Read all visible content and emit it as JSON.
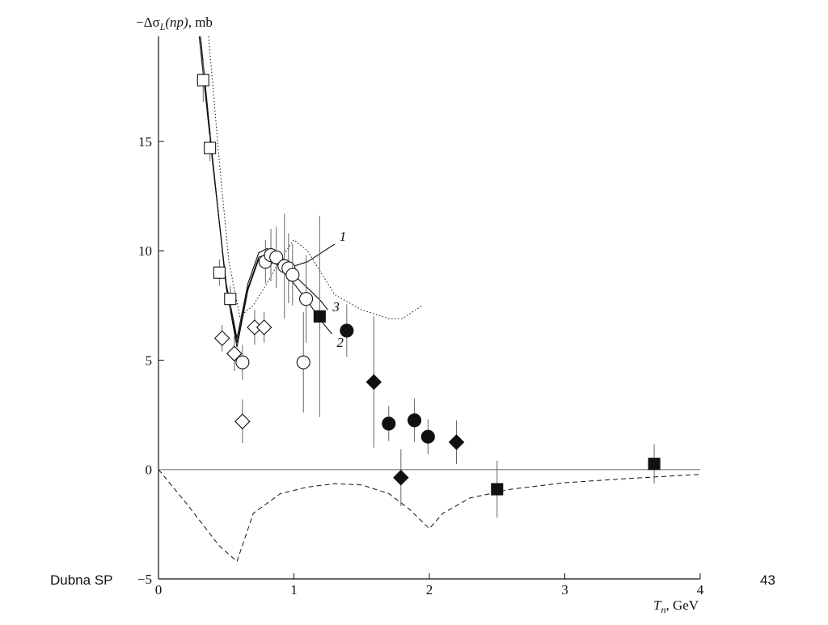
{
  "chart_data": {
    "type": "scatter",
    "y_label": [
      "−Δσ",
      "L",
      "(np)",
      ", mb"
    ],
    "x_label": [
      "T",
      "n",
      ", GeV"
    ],
    "xlim": [
      0,
      4
    ],
    "ylim": [
      -5,
      19.8
    ],
    "xticks": [
      0,
      1,
      2,
      3,
      4
    ],
    "yticks": [
      {
        "value": -5,
        "label": "−5"
      },
      0,
      5,
      10,
      15
    ],
    "color": "#111111",
    "series": [
      {
        "marker": "square",
        "filled": false,
        "x": [
          0.33,
          0.38,
          0.45,
          0.53
        ],
        "values": [
          17.8,
          14.7,
          9.0,
          7.8
        ],
        "errors": [
          1.0,
          0.6,
          0.6,
          0.6
        ]
      },
      {
        "marker": "diamond",
        "filled": false,
        "x": [
          0.47,
          0.56,
          0.62,
          0.71,
          0.78
        ],
        "values": [
          6.0,
          5.3,
          2.2,
          6.5,
          6.5
        ],
        "errors": [
          0.6,
          0.8,
          1.0,
          0.8,
          0.7
        ]
      },
      {
        "marker": "circle",
        "filled": false,
        "x": [
          0.62,
          0.79,
          0.83,
          0.87,
          0.93,
          0.96,
          0.99,
          1.09,
          1.07
        ],
        "values": [
          4.9,
          9.5,
          9.8,
          9.7,
          9.3,
          9.2,
          8.9,
          7.8,
          4.9
        ],
        "errors": [
          0.8,
          1.0,
          1.2,
          1.4,
          2.4,
          1.6,
          1.4,
          2.0,
          2.3
        ]
      },
      {
        "marker": "square",
        "filled": true,
        "x": [
          1.19,
          2.5,
          3.66
        ],
        "values": [
          7.0,
          -0.9,
          0.26
        ],
        "errors": [
          4.6,
          1.3,
          0.9
        ]
      },
      {
        "marker": "circle",
        "filled": true,
        "x": [
          1.39,
          1.7,
          1.89,
          1.99
        ],
        "values": [
          6.35,
          2.1,
          2.25,
          1.5
        ],
        "errors": [
          1.2,
          0.8,
          1.0,
          0.8
        ]
      },
      {
        "marker": "diamond",
        "filled": true,
        "x": [
          1.59,
          1.79,
          2.2
        ],
        "values": [
          4.0,
          -0.37,
          1.25
        ],
        "errors": [
          3.0,
          1.3,
          1.0
        ]
      },
      {
        "name": "1",
        "line": "solid",
        "x": [
          0.3,
          0.4,
          0.5,
          0.58,
          0.66,
          0.74,
          0.8,
          0.9,
          1.0,
          1.1,
          1.2,
          1.3
        ],
        "values": [
          19.8,
          14.0,
          8.5,
          6.0,
          8.5,
          9.9,
          10.1,
          9.7,
          9.3,
          9.5,
          9.9,
          10.3
        ]
      },
      {
        "name": "2",
        "line": "solid",
        "x": [
          0.31,
          0.4,
          0.5,
          0.58,
          0.66,
          0.74,
          0.82,
          0.9,
          1.0,
          1.1,
          1.2,
          1.28
        ],
        "values": [
          19.8,
          14.2,
          8.3,
          5.6,
          8.2,
          9.6,
          9.8,
          9.2,
          8.5,
          7.7,
          6.8,
          6.2
        ]
      },
      {
        "name": "3",
        "line": "solid",
        "x": [
          0.31,
          0.4,
          0.5,
          0.58,
          0.66,
          0.74,
          0.82,
          0.9,
          1.0,
          1.1,
          1.2,
          1.25
        ],
        "values": [
          19.8,
          14.1,
          8.4,
          5.8,
          8.3,
          9.7,
          9.9,
          9.5,
          8.9,
          8.3,
          7.7,
          7.3
        ]
      },
      {
        "line": "dotted",
        "x": [
          0.37,
          0.45,
          0.52,
          0.6,
          0.7,
          0.8,
          0.9,
          1.0,
          1.1,
          1.2,
          1.3,
          1.5,
          1.7,
          1.8,
          1.95
        ],
        "values": [
          19.8,
          14.0,
          9.5,
          7.0,
          7.5,
          8.5,
          9.6,
          10.5,
          10.0,
          9.0,
          8.0,
          7.3,
          6.9,
          6.9,
          7.5
        ]
      },
      {
        "line": "dashed",
        "x": [
          0,
          0.2,
          0.45,
          0.58,
          0.7,
          0.9,
          1.1,
          1.3,
          1.5,
          1.7,
          1.85,
          2.0,
          2.1,
          2.3,
          2.6,
          3.0,
          3.5,
          4.0
        ],
        "values": [
          0,
          -1.5,
          -3.5,
          -4.2,
          -2.0,
          -1.1,
          -0.8,
          -0.65,
          -0.7,
          -1.1,
          -1.8,
          -2.7,
          -2.0,
          -1.3,
          -0.9,
          -0.6,
          -0.4,
          -0.22
        ]
      }
    ]
  },
  "footer": {
    "left": "Dubna SP",
    "page": "43"
  }
}
